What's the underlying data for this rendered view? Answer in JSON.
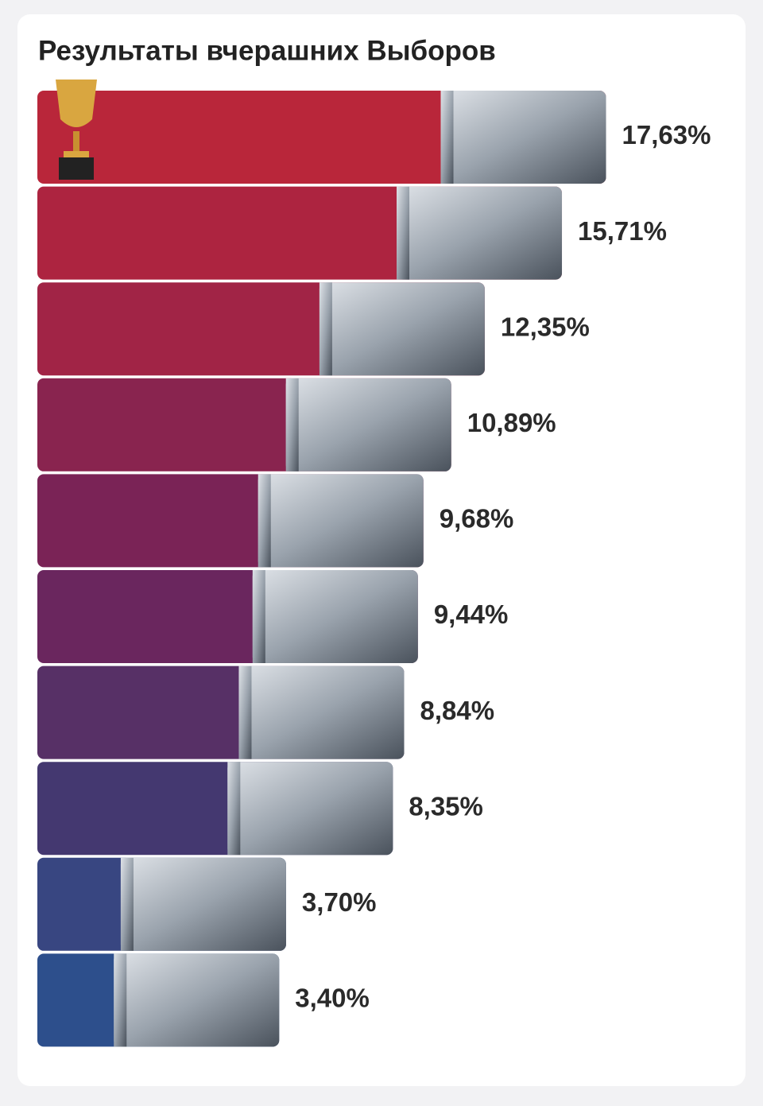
{
  "chart_data": {
    "type": "bar",
    "orientation": "horizontal",
    "title": "Результаты вчерашних Выборов",
    "values": [
      17.63,
      15.71,
      12.35,
      10.89,
      9.68,
      9.44,
      8.84,
      8.35,
      3.7,
      3.4
    ],
    "value_labels": [
      "17,63%",
      "15,71%",
      "12,35%",
      "10,89%",
      "9,68%",
      "9,44%",
      "8,84%",
      "8,35%",
      "3,70%",
      "3,40%"
    ],
    "colors": [
      "#b9263a",
      "#ad2440",
      "#a12446",
      "#89244f",
      "#7a2356",
      "#6a265e",
      "#573066",
      "#443870",
      "#384681",
      "#2d4f8c"
    ]
  }
}
